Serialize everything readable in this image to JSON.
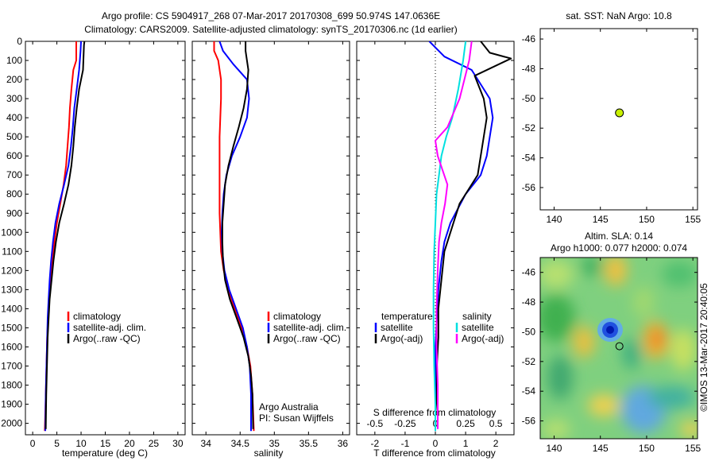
{
  "title": {
    "line1": "Argo profile: CS 5904917_268 07-Mar-2017 20170308_699 50.974S 147.0636E",
    "line2": "Climatology: CARS2009. Satellite-adjusted climatology: synTS_20170306.nc (1d earlier)"
  },
  "colors": {
    "climatology": "#ff0000",
    "satellite": "#0000ff",
    "argo": "#000000",
    "salinity_satellite": "#00e0e0",
    "salinity_argo": "#ff00ff",
    "marker": "#c8f000"
  },
  "chart_data": [
    {
      "id": "temperature",
      "type": "line",
      "xlabel": "temperature (deg C)",
      "ylabel": "",
      "xlim": [
        -1.5,
        31.5
      ],
      "ylim": [
        2060,
        0
      ],
      "xticks": [
        0,
        5,
        10,
        15,
        20,
        25,
        30
      ],
      "yticks": [
        0,
        100,
        200,
        300,
        400,
        500,
        600,
        700,
        800,
        900,
        1000,
        1100,
        1200,
        1300,
        1400,
        1500,
        1600,
        1700,
        1800,
        1900,
        2000
      ],
      "legend": [
        "climatology",
        "satellite-adj. clim.",
        "Argo(..raw -QC)"
      ],
      "series": [
        {
          "name": "climatology",
          "color": "#ff0000",
          "x": [
            9.0,
            9.0,
            8.4,
            8.0,
            7.7,
            7.5,
            7.2,
            6.9,
            6.4,
            5.7,
            5.0,
            4.5,
            4.1,
            3.7,
            3.4,
            3.2,
            3.0,
            2.9,
            2.8,
            2.7,
            2.6,
            2.5
          ],
          "y": [
            0,
            100,
            150,
            250,
            350,
            450,
            550,
            650,
            750,
            850,
            950,
            1050,
            1150,
            1250,
            1350,
            1450,
            1550,
            1650,
            1750,
            1850,
            1950,
            2040
          ]
        },
        {
          "name": "satellite-adj. clim.",
          "color": "#0000ff",
          "x": [
            10.0,
            9.9,
            9.6,
            9.1,
            8.6,
            8.3,
            7.9,
            7.4,
            6.5,
            5.5,
            4.7,
            4.2,
            3.8,
            3.5,
            3.3,
            3.1,
            3.0,
            2.9,
            2.8,
            2.7,
            2.6
          ],
          "y": [
            0,
            50,
            150,
            250,
            350,
            450,
            550,
            650,
            750,
            850,
            950,
            1050,
            1150,
            1250,
            1350,
            1450,
            1550,
            1650,
            1750,
            1850,
            2040
          ]
        },
        {
          "name": "Argo(..raw -QC)",
          "color": "#000000",
          "x": [
            10.7,
            10.6,
            10.4,
            9.6,
            9.1,
            8.7,
            8.4,
            8.0,
            7.4,
            6.5,
            5.5,
            4.8,
            4.3,
            3.9,
            3.5,
            3.3,
            3.1,
            3.0,
            2.9,
            2.8,
            2.7
          ],
          "y": [
            0,
            20,
            150,
            250,
            350,
            450,
            550,
            650,
            750,
            850,
            950,
            1050,
            1150,
            1250,
            1350,
            1450,
            1550,
            1650,
            1750,
            1850,
            2030
          ]
        }
      ]
    },
    {
      "id": "salinity",
      "type": "line",
      "xlabel": "salinity",
      "ylabel": "",
      "xlim": [
        33.8,
        36.1
      ],
      "ylim": [
        2060,
        0
      ],
      "xticks": [
        34,
        34.5,
        35,
        35.5,
        36
      ],
      "legend": [
        "climatology",
        "satellite-adj. clim.",
        "Argo(..raw -QC)"
      ],
      "annotation": [
        "Argo Australia",
        "PI: Susan Wijffels"
      ],
      "series": [
        {
          "name": "climatology",
          "color": "#ff0000",
          "x": [
            34.12,
            34.12,
            34.18,
            34.22,
            34.22,
            34.21,
            34.2,
            34.2,
            34.2,
            34.2,
            34.2,
            34.21,
            34.22,
            34.26,
            34.33,
            34.42,
            34.52,
            34.6,
            34.65,
            34.68,
            34.7
          ],
          "y": [
            0,
            50,
            100,
            200,
            300,
            400,
            500,
            600,
            700,
            800,
            900,
            1000,
            1100,
            1200,
            1300,
            1400,
            1500,
            1600,
            1700,
            1850,
            2040
          ]
        },
        {
          "name": "satellite-adj. clim.",
          "color": "#0000ff",
          "x": [
            34.2,
            34.25,
            34.4,
            34.6,
            34.63,
            34.6,
            34.5,
            34.38,
            34.3,
            34.26,
            34.24,
            34.23,
            34.24,
            34.27,
            34.34,
            34.44,
            34.54,
            34.6,
            34.64,
            34.66,
            34.66
          ],
          "y": [
            0,
            50,
            120,
            200,
            300,
            400,
            500,
            600,
            700,
            800,
            900,
            1000,
            1100,
            1200,
            1300,
            1400,
            1500,
            1600,
            1700,
            1850,
            2040
          ]
        },
        {
          "name": "Argo(..raw -QC)",
          "color": "#000000",
          "x": [
            34.58,
            34.58,
            34.62,
            34.6,
            34.55,
            34.48,
            34.4,
            34.33,
            34.28,
            34.26,
            34.24,
            34.24,
            34.25,
            34.28,
            34.35,
            34.45,
            34.55,
            34.62,
            34.66,
            34.68,
            34.69
          ],
          "y": [
            0,
            50,
            150,
            250,
            350,
            450,
            550,
            650,
            750,
            850,
            950,
            1050,
            1150,
            1250,
            1350,
            1450,
            1550,
            1650,
            1750,
            1850,
            2030
          ]
        }
      ]
    },
    {
      "id": "difference",
      "type": "line",
      "xlabel": "T difference from climatology",
      "xlabel_top": "S difference from climatology",
      "xlim": [
        -2.6,
        2.6
      ],
      "ylim": [
        2060,
        0
      ],
      "xticks": [
        -2,
        -1,
        0,
        1,
        2
      ],
      "xticks_salinity": [
        "-0.5",
        "-0.25",
        "0",
        "0.25",
        "0.5"
      ],
      "legend": {
        "temperature_header": "temperature",
        "salinity_header": "salinity",
        "items": [
          "satellite",
          "Argo(-adj)",
          "satellite",
          "Argo(-adj)"
        ]
      },
      "series": [
        {
          "name": "temperature satellite",
          "color": "#0000ff",
          "x": [
            -0.2,
            0.3,
            1.2,
            1.8,
            1.9,
            1.8,
            1.7,
            1.5,
            1.0,
            0.5,
            0.3,
            0.2,
            0.1,
            0.05,
            0.0,
            0.0,
            0.0,
            0.0,
            0.0
          ],
          "y": [
            0,
            80,
            150,
            300,
            400,
            500,
            600,
            700,
            800,
            950,
            1050,
            1150,
            1300,
            1450,
            1600,
            1750,
            1900,
            2000,
            2040
          ]
        },
        {
          "name": "temperature Argo",
          "color": "#000000",
          "x": [
            1.5,
            1.8,
            2.5,
            1.3,
            1.6,
            1.7,
            1.6,
            1.5,
            1.4,
            0.8,
            0.6,
            0.3,
            0.2,
            0.1,
            0.1,
            0.05,
            0.05,
            0.0,
            0.0
          ],
          "y": [
            0,
            60,
            90,
            180,
            300,
            400,
            500,
            600,
            700,
            850,
            950,
            1100,
            1250,
            1400,
            1550,
            1700,
            1850,
            1950,
            2030
          ]
        },
        {
          "name": "salinity satellite",
          "color": "#00e0e0",
          "x": [
            0.25,
            0.23,
            0.19,
            0.14,
            0.09,
            0.05,
            0.03,
            0.01,
            0.0,
            -0.01,
            -0.015,
            -0.015,
            -0.01,
            0.0,
            0.0
          ],
          "y": [
            0,
            100,
            250,
            400,
            500,
            600,
            700,
            800,
            950,
            1100,
            1300,
            1500,
            1700,
            1900,
            2040
          ]
        },
        {
          "name": "salinity Argo",
          "color": "#ff00ff",
          "x": [
            0.3,
            0.28,
            0.2,
            0.1,
            0.0,
            0.02,
            0.1,
            0.08,
            0.05,
            0.03,
            0.02,
            0.01,
            0.01,
            0.02,
            0.02
          ],
          "y": [
            0,
            100,
            300,
            450,
            520,
            600,
            750,
            850,
            950,
            1050,
            1200,
            1400,
            1600,
            1800,
            2030
          ]
        }
      ]
    },
    {
      "id": "sst-map",
      "type": "scatter",
      "title": "sat. SST: NaN Argo: 10.8",
      "xlim": [
        138.5,
        155.5
      ],
      "ylim": [
        -57.5,
        -45.3
      ],
      "xticks": [
        140,
        145,
        150,
        155
      ],
      "yticks": [
        -46,
        -48,
        -50,
        -52,
        -54,
        -56
      ],
      "points": [
        {
          "x": 147.06,
          "y": -50.97
        }
      ]
    },
    {
      "id": "sla-map",
      "type": "heatmap",
      "title_line1": "Altim. SLA: 0.14",
      "title_line2": "Argo h1000: 0.077 h2000: 0.074",
      "xlim": [
        138.5,
        155.5
      ],
      "ylim": [
        -57.2,
        -45.0
      ],
      "xticks": [
        140,
        145,
        150,
        155
      ],
      "yticks": [
        -46,
        -48,
        -50,
        -52,
        -54,
        -56
      ],
      "points": [
        {
          "x": 147.06,
          "y": -50.97
        }
      ]
    }
  ],
  "credit": "©IMOS 13-Mar-2017 20:40:05"
}
